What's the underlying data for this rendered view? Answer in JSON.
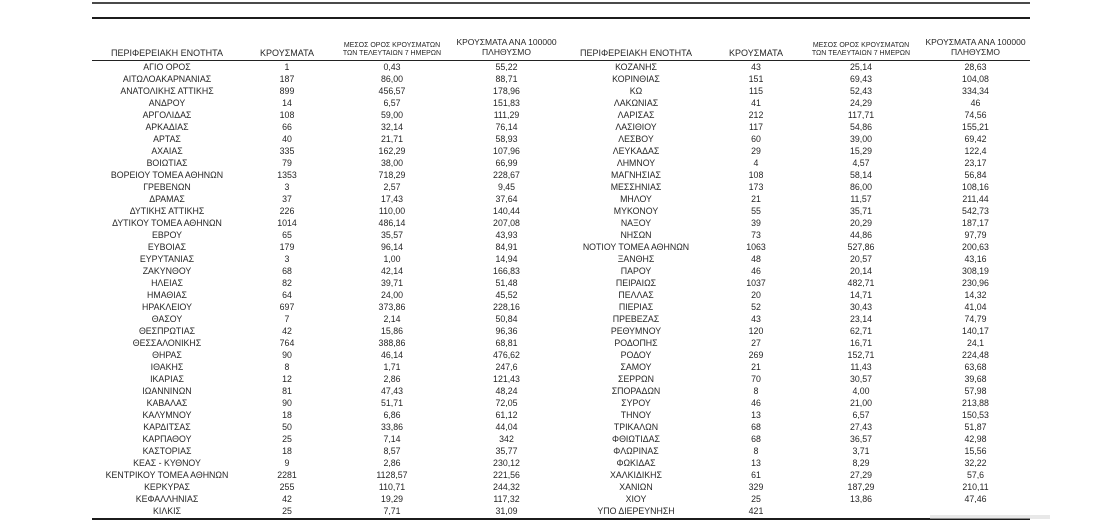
{
  "table": {
    "headers": {
      "region": "ΠΕΡΙΦΕΡΕΙΑΚΗ ΕΝΟΤΗΤΑ",
      "cases": "ΚΡΟΥΣΜΑΤΑ",
      "avg7_line1": "ΜΕΣΟΣ ΟΡΟΣ ΚΡΟΥΣΜΑΤΩΝ",
      "avg7_line2": "ΤΩΝ ΤΕΛΕΥΤΑΙΩΝ 7 ΗΜΕΡΩΝ",
      "per100k_line1": "ΚΡΟΥΣΜΑΤΑ ΑΝΑ 100000",
      "per100k_line2": "ΠΛΗΘΥΣΜΟ"
    },
    "left_rows": [
      [
        "ΑΓΙΟ ΟΡΟΣ",
        "1",
        "0,43",
        "55,22"
      ],
      [
        "ΑΙΤΩΛΟΑΚΑΡΝΑΝΙΑΣ",
        "187",
        "86,00",
        "88,71"
      ],
      [
        "ΑΝΑΤΟΛΙΚΗΣ ΑΤΤΙΚΗΣ",
        "899",
        "456,57",
        "178,96"
      ],
      [
        "ΑΝΔΡΟΥ",
        "14",
        "6,57",
        "151,83"
      ],
      [
        "ΑΡΓΟΛΙΔΑΣ",
        "108",
        "59,00",
        "111,29"
      ],
      [
        "ΑΡΚΑΔΙΑΣ",
        "66",
        "32,14",
        "76,14"
      ],
      [
        "ΑΡΤΑΣ",
        "40",
        "21,71",
        "58,93"
      ],
      [
        "ΑΧΑΪΑΣ",
        "335",
        "162,29",
        "107,96"
      ],
      [
        "ΒΟΙΩΤΙΑΣ",
        "79",
        "38,00",
        "66,99"
      ],
      [
        "ΒΟΡΕΙΟΥ ΤΟΜΕΑ ΑΘΗΝΩΝ",
        "1353",
        "718,29",
        "228,67"
      ],
      [
        "ΓΡΕΒΕΝΩΝ",
        "3",
        "2,57",
        "9,45"
      ],
      [
        "ΔΡΑΜΑΣ",
        "37",
        "17,43",
        "37,64"
      ],
      [
        "ΔΥΤΙΚΗΣ ΑΤΤΙΚΗΣ",
        "226",
        "110,00",
        "140,44"
      ],
      [
        "ΔΥΤΙΚΟΥ ΤΟΜΕΑ ΑΘΗΝΩΝ",
        "1014",
        "486,14",
        "207,08"
      ],
      [
        "ΕΒΡΟΥ",
        "65",
        "35,57",
        "43,93"
      ],
      [
        "ΕΥΒΟΙΑΣ",
        "179",
        "96,14",
        "84,91"
      ],
      [
        "ΕΥΡΥΤΑΝΙΑΣ",
        "3",
        "1,00",
        "14,94"
      ],
      [
        "ΖΑΚΥΝΘΟΥ",
        "68",
        "42,14",
        "166,83"
      ],
      [
        "ΗΛΕΙΑΣ",
        "82",
        "39,71",
        "51,48"
      ],
      [
        "ΗΜΑΘΙΑΣ",
        "64",
        "24,00",
        "45,52"
      ],
      [
        "ΗΡΑΚΛΕΙΟΥ",
        "697",
        "373,86",
        "228,16"
      ],
      [
        "ΘΑΣΟΥ",
        "7",
        "2,14",
        "50,84"
      ],
      [
        "ΘΕΣΠΡΩΤΙΑΣ",
        "42",
        "15,86",
        "96,36"
      ],
      [
        "ΘΕΣΣΑΛΟΝΙΚΗΣ",
        "764",
        "388,86",
        "68,81"
      ],
      [
        "ΘΗΡΑΣ",
        "90",
        "46,14",
        "476,62"
      ],
      [
        "ΙΘΑΚΗΣ",
        "8",
        "1,71",
        "247,6"
      ],
      [
        "ΙΚΑΡΙΑΣ",
        "12",
        "2,86",
        "121,43"
      ],
      [
        "ΙΩΑΝΝΙΝΩΝ",
        "81",
        "47,43",
        "48,24"
      ],
      [
        "ΚΑΒΑΛΑΣ",
        "90",
        "51,71",
        "72,05"
      ],
      [
        "ΚΑΛΥΜΝΟΥ",
        "18",
        "6,86",
        "61,12"
      ],
      [
        "ΚΑΡΔΙΤΣΑΣ",
        "50",
        "33,86",
        "44,04"
      ],
      [
        "ΚΑΡΠΑΘΟΥ",
        "25",
        "7,14",
        "342"
      ],
      [
        "ΚΑΣΤΟΡΙΑΣ",
        "18",
        "8,57",
        "35,77"
      ],
      [
        "ΚΕΑΣ - ΚΥΘΝΟΥ",
        "9",
        "2,86",
        "230,12"
      ],
      [
        "ΚΕΝΤΡΙΚΟΥ ΤΟΜΕΑ ΑΘΗΝΩΝ",
        "2281",
        "1128,57",
        "221,56"
      ],
      [
        "ΚΕΡΚΥΡΑΣ",
        "255",
        "110,71",
        "244,32"
      ],
      [
        "ΚΕΦΑΛΛΗΝΙΑΣ",
        "42",
        "19,29",
        "117,32"
      ],
      [
        "ΚΙΛΚΙΣ",
        "25",
        "7,71",
        "31,09"
      ]
    ],
    "right_rows": [
      [
        "ΚΟΖΑΝΗΣ",
        "43",
        "25,14",
        "28,63"
      ],
      [
        "ΚΟΡΙΝΘΙΑΣ",
        "151",
        "69,43",
        "104,08"
      ],
      [
        "ΚΩ",
        "115",
        "52,43",
        "334,34"
      ],
      [
        "ΛΑΚΩΝΙΑΣ",
        "41",
        "24,29",
        "46"
      ],
      [
        "ΛΑΡΙΣΑΣ",
        "212",
        "117,71",
        "74,56"
      ],
      [
        "ΛΑΣΙΘΙΟΥ",
        "117",
        "54,86",
        "155,21"
      ],
      [
        "ΛΕΣΒΟΥ",
        "60",
        "39,00",
        "69,42"
      ],
      [
        "ΛΕΥΚΑΔΑΣ",
        "29",
        "15,29",
        "122,4"
      ],
      [
        "ΛΗΜΝΟΥ",
        "4",
        "4,57",
        "23,17"
      ],
      [
        "ΜΑΓΝΗΣΙΑΣ",
        "108",
        "58,14",
        "56,84"
      ],
      [
        "ΜΕΣΣΗΝΙΑΣ",
        "173",
        "86,00",
        "108,16"
      ],
      [
        "ΜΗΛΟΥ",
        "21",
        "11,57",
        "211,44"
      ],
      [
        "ΜΥΚΟΝΟΥ",
        "55",
        "35,71",
        "542,73"
      ],
      [
        "ΝΑΞΟΥ",
        "39",
        "20,29",
        "187,17"
      ],
      [
        "ΝΗΣΩΝ",
        "73",
        "44,86",
        "97,79"
      ],
      [
        "ΝΟΤΙΟΥ ΤΟΜΕΑ ΑΘΗΝΩΝ",
        "1063",
        "527,86",
        "200,63"
      ],
      [
        "ΞΑΝΘΗΣ",
        "48",
        "20,57",
        "43,16"
      ],
      [
        "ΠΑΡΟΥ",
        "46",
        "20,14",
        "308,19"
      ],
      [
        "ΠΕΙΡΑΙΩΣ",
        "1037",
        "482,71",
        "230,96"
      ],
      [
        "ΠΕΛΛΑΣ",
        "20",
        "14,71",
        "14,32"
      ],
      [
        "ΠΙΕΡΙΑΣ",
        "52",
        "30,43",
        "41,04"
      ],
      [
        "ΠΡΕΒΕΖΑΣ",
        "43",
        "23,14",
        "74,79"
      ],
      [
        "ΡΕΘΥΜΝΟΥ",
        "120",
        "62,71",
        "140,17"
      ],
      [
        "ΡΟΔΟΠΗΣ",
        "27",
        "16,71",
        "24,1"
      ],
      [
        "ΡΟΔΟΥ",
        "269",
        "152,71",
        "224,48"
      ],
      [
        "ΣΑΜΟΥ",
        "21",
        "11,43",
        "63,68"
      ],
      [
        "ΣΕΡΡΩΝ",
        "70",
        "30,57",
        "39,68"
      ],
      [
        "ΣΠΟΡΑΔΩΝ",
        "8",
        "4,00",
        "57,98"
      ],
      [
        "ΣΥΡΟΥ",
        "46",
        "21,00",
        "213,88"
      ],
      [
        "ΤΗΝΟΥ",
        "13",
        "6,57",
        "150,53"
      ],
      [
        "ΤΡΙΚΑΛΩΝ",
        "68",
        "27,43",
        "51,87"
      ],
      [
        "ΦΘΙΩΤΙΔΑΣ",
        "68",
        "36,57",
        "42,98"
      ],
      [
        "ΦΛΩΡΙΝΑΣ",
        "8",
        "3,71",
        "15,56"
      ],
      [
        "ΦΩΚΙΔΑΣ",
        "13",
        "8,29",
        "32,22"
      ],
      [
        "ΧΑΛΚΙΔΙΚΗΣ",
        "61",
        "27,29",
        "57,6"
      ],
      [
        "ΧΑΝΙΩΝ",
        "329",
        "187,29",
        "210,11"
      ],
      [
        "ΧΙΟΥ",
        "25",
        "13,86",
        "47,46"
      ],
      [
        "ΥΠΟ ΔΙΕΡΕΥΝΗΣΗ",
        "421",
        "",
        ""
      ]
    ],
    "colors": {
      "text": "#262626",
      "rule": "#1c1c1c",
      "background": "#ffffff"
    }
  }
}
